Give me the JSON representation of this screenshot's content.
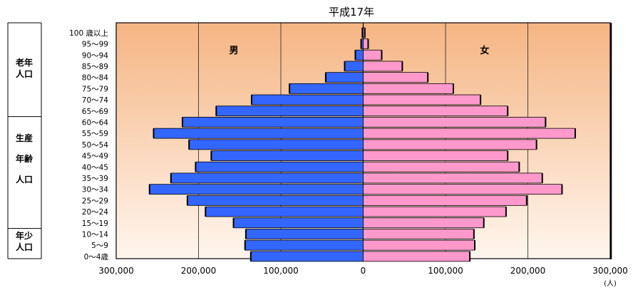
{
  "chart_data": {
    "type": "bar",
    "title": "平成17年",
    "unit": "(人)",
    "male_label": "男",
    "female_label": "女",
    "categories": [
      "100 歳以上",
      "95〜99",
      "90〜94",
      "85〜89",
      "80〜84",
      "75〜79",
      "70〜74",
      "65〜69",
      "60〜64",
      "55〜59",
      "50〜54",
      "45〜49",
      "40〜45",
      "35〜39",
      "30〜34",
      "25〜29",
      "20〜24",
      "15〜19",
      "10〜14",
      "5〜9",
      "0〜4歳"
    ],
    "series": [
      {
        "name": "男",
        "color": "#3366ff",
        "values": [
          500,
          2000,
          9000,
          22000,
          45000,
          89000,
          135000,
          178000,
          219000,
          254000,
          211000,
          184000,
          203000,
          233000,
          259000,
          213000,
          191000,
          157000,
          142000,
          143000,
          136000
        ]
      },
      {
        "name": "女",
        "color": "#ff99cc",
        "values": [
          1500,
          5500,
          22000,
          47000,
          78000,
          109000,
          142000,
          175000,
          221000,
          257000,
          210000,
          175000,
          189000,
          217000,
          241000,
          198000,
          173000,
          146000,
          134000,
          135000,
          129000
        ]
      }
    ],
    "xlim": [
      -300000,
      300000
    ],
    "xticks": [
      -300000,
      -200000,
      -100000,
      0,
      100000,
      200000,
      300000
    ],
    "xtick_labels": [
      "300,000",
      "200,000",
      "100,000",
      "0",
      "100,000",
      "200,000",
      "300,000"
    ],
    "groups": [
      {
        "label_lines": [
          "老年",
          "人口"
        ],
        "from": "100 歳以上",
        "to": "65〜69"
      },
      {
        "label_lines": [
          "生産",
          "年齢",
          "人口"
        ],
        "from": "60〜64",
        "to": "15〜19"
      },
      {
        "label_lines": [
          "年少",
          "人口"
        ],
        "from": "10〜14",
        "to": "0〜4歳"
      }
    ],
    "background_gradient": [
      "#f5b583",
      "#fff6ee"
    ],
    "grid": true,
    "legend": "none"
  }
}
